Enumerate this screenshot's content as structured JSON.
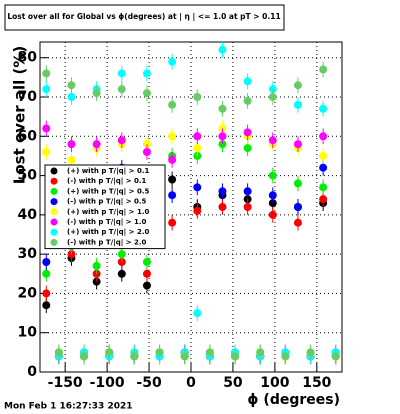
{
  "chart_data": {
    "type": "scatter",
    "title": "Lost over all for Global vs ϕ(degrees) at | η | <= 1.0 at pT > 0.11",
    "x_label": "ϕ (degrees)",
    "y_label": "Lost over all (%)",
    "timestamp": "Mon Feb  1 16:27:33 2021",
    "x": [
      -172.5,
      -157.5,
      -142.5,
      -127.5,
      -112.5,
      -97.5,
      -82.5,
      -67.5,
      -52.5,
      -37.5,
      -22.5,
      -7.5,
      7.5,
      22.5,
      37.5,
      52.5,
      67.5,
      82.5,
      97.5,
      112.5,
      127.5,
      142.5,
      157.5,
      172.5
    ],
    "xlim": [
      -180,
      180
    ],
    "xticks": [
      -150,
      -100,
      -50,
      0,
      50,
      100,
      150
    ],
    "ylim": [
      0,
      84
    ],
    "yticks": [
      0,
      10,
      20,
      30,
      40,
      50,
      60,
      70,
      80
    ],
    "grid": true,
    "series": [
      {
        "name": "(+) with p T/|q| > 0.1",
        "color": "#000000",
        "error": 2,
        "values": [
          17,
          4,
          29,
          4,
          23,
          4,
          25,
          4,
          22,
          5,
          49,
          4,
          42,
          4,
          45,
          4,
          44,
          4,
          43,
          4,
          42,
          4,
          43,
          4
        ]
      },
      {
        "name": "(-) with p T/|q| > 0.1",
        "color": "#ff0000",
        "error": 2,
        "values": [
          20,
          4,
          30,
          5,
          25,
          4,
          28,
          4,
          25,
          4,
          38,
          5,
          41,
          4,
          42,
          4,
          42,
          4,
          40,
          4,
          38,
          4,
          44,
          4
        ]
      },
      {
        "name": "(+) with p T/|q| > 0.5",
        "color": "#00ee00",
        "error": 2,
        "values": [
          25,
          5,
          32,
          4,
          27,
          5,
          30,
          4,
          28,
          5,
          55,
          4,
          55,
          5,
          58,
          4,
          57,
          5,
          50,
          4,
          48,
          4,
          47,
          5
        ]
      },
      {
        "name": "(-) with p T/|q| > 0.5",
        "color": "#0000ff",
        "error": 2,
        "values": [
          28,
          4,
          45,
          4,
          47,
          5,
          52,
          4,
          50,
          4,
          45,
          5,
          47,
          4,
          46,
          4,
          46,
          4,
          45,
          5,
          42,
          4,
          52,
          4
        ]
      },
      {
        "name": "(+) with p T/|q| > 1.0",
        "color": "#ffff00",
        "error": 2,
        "values": [
          56,
          5,
          54,
          4,
          57,
          5,
          58,
          4,
          58,
          5,
          60,
          4,
          57,
          5,
          62,
          4,
          60,
          5,
          58,
          4,
          57,
          5,
          55,
          4
        ]
      },
      {
        "name": "(-) with p T/|q| > 1.0",
        "color": "#ff00ff",
        "error": 2,
        "values": [
          62,
          4,
          58,
          5,
          58,
          4,
          59,
          5,
          56,
          4,
          54,
          5,
          60,
          4,
          60,
          5,
          61,
          4,
          59,
          5,
          58,
          4,
          60,
          5
        ]
      },
      {
        "name": "(+) with p T/|q| > 2.0",
        "color": "#00ffff",
        "error": 2,
        "values": [
          72,
          4,
          70,
          5,
          72,
          4,
          76,
          5,
          76,
          4,
          79,
          5,
          15,
          4,
          82,
          5,
          74,
          4,
          72,
          5,
          68,
          4,
          67,
          5
        ]
      },
      {
        "name": "(-) with p T/|q| > 2.0",
        "color": "#66cc66",
        "error": 2,
        "values": [
          76,
          5,
          73,
          4,
          71,
          5,
          72,
          4,
          71,
          5,
          68,
          4,
          70,
          5,
          67,
          4,
          69,
          5,
          70,
          4,
          73,
          5,
          77,
          4
        ]
      }
    ]
  }
}
